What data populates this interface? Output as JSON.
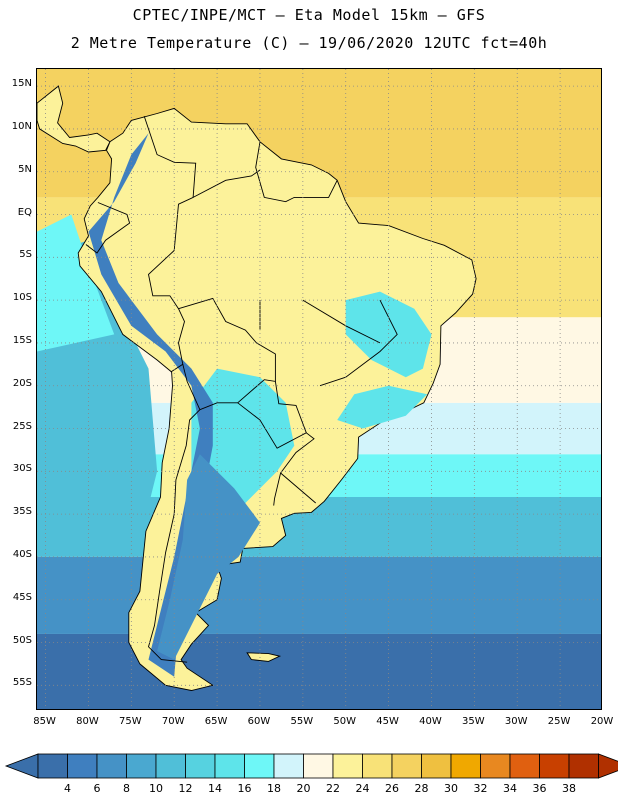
{
  "header": {
    "line1": "CPTEC/INPE/MCT –  Eta Model 15km – GFS",
    "line2": "2 Metre Temperature (C) – 19/06/2020 12UTC fct=40h"
  },
  "axes": {
    "lat_labels": [
      "15N",
      "10N",
      "5N",
      "EQ",
      "5S",
      "10S",
      "15S",
      "20S",
      "25S",
      "30S",
      "35S",
      "40S",
      "45S",
      "50S",
      "55S"
    ],
    "lat_values": [
      15,
      10,
      5,
      0,
      -5,
      -10,
      -15,
      -20,
      -25,
      -30,
      -35,
      -40,
      -45,
      -50,
      -55
    ],
    "lon_labels": [
      "85W",
      "80W",
      "75W",
      "70W",
      "65W",
      "60W",
      "55W",
      "50W",
      "45W",
      "40W",
      "35W",
      "30W",
      "25W",
      "20W"
    ],
    "lon_values": [
      -85,
      -80,
      -75,
      -70,
      -65,
      -60,
      -55,
      -50,
      -45,
      -40,
      -35,
      -30,
      -25,
      -20
    ],
    "lat_range": [
      -58,
      17
    ],
    "lon_range": [
      -86,
      -20
    ]
  },
  "colorbar": {
    "labels": [
      "4",
      "6",
      "8",
      "10",
      "12",
      "14",
      "16",
      "18",
      "20",
      "22",
      "24",
      "26",
      "28",
      "30",
      "32",
      "34",
      "36",
      "38"
    ],
    "colors": [
      "#3a6faa",
      "#3f7fbf",
      "#4592c6",
      "#4aa8d0",
      "#50bfd8",
      "#56d2e0",
      "#5ee4ea",
      "#6ef7f7",
      "#d2f4fb",
      "#fff8e4",
      "#fcf29a",
      "#f8e278",
      "#f4d260",
      "#efc040",
      "#f0a800",
      "#e88820",
      "#e06010",
      "#c84000",
      "#b03000"
    ],
    "left_color": "#3a6faa",
    "right_color": "#b03000"
  },
  "map_colors": {
    "ocean_cold": "#3a6faa",
    "ocean_cool": "#4592c6",
    "ocean_mid": "#50bfd8",
    "ocean_light": "#6ef7f7",
    "ocean_pale": "#d2f4fb",
    "ocean_cream": "#fff8e4",
    "ocean_warm": "#f8e278",
    "ocean_hot": "#f4d260",
    "land_warm": "#fcf29a",
    "land_cool": "#5ee4ea",
    "andes": "#3f7fbf",
    "border": "#000000",
    "grid": "#888888"
  }
}
